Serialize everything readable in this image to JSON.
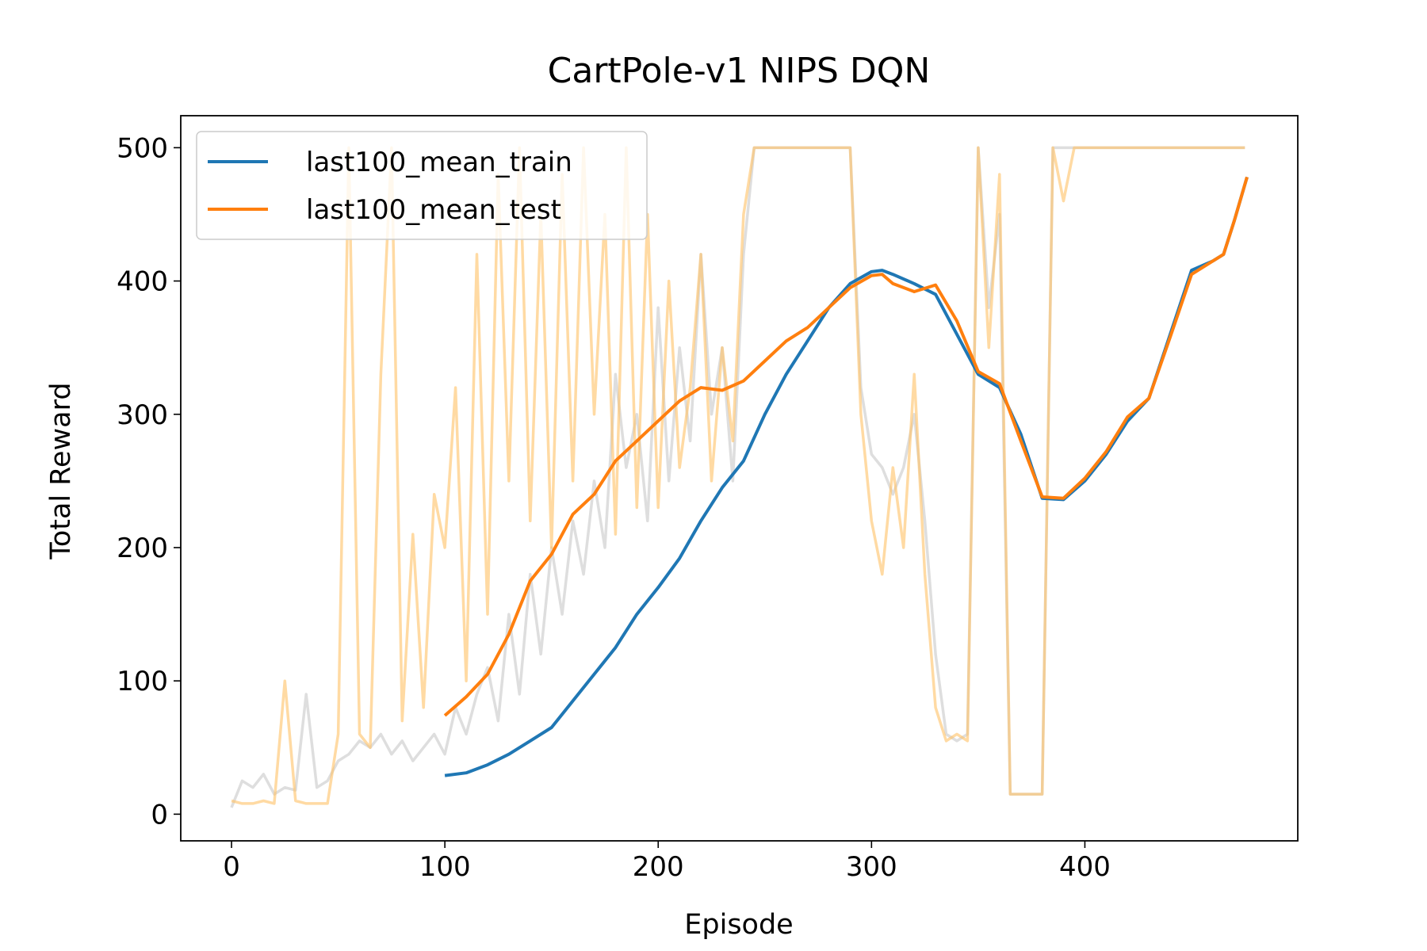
{
  "chart_data": {
    "type": "line",
    "title": "CartPole-v1 NIPS DQN",
    "x_label": "Episode",
    "y_label": "Total Reward",
    "xlim": [
      -23.8,
      499.8
    ],
    "ylim": [
      -20,
      524
    ],
    "xticks": [
      0,
      100,
      200,
      300,
      400
    ],
    "yticks": [
      0,
      100,
      200,
      300,
      400,
      500
    ],
    "grid": false,
    "legend": "upper left",
    "series": [
      {
        "color": "#c8c8c8",
        "x": [
          0,
          5,
          10,
          15,
          20,
          25,
          30,
          35,
          40,
          45,
          50,
          55,
          60,
          65,
          70,
          75,
          80,
          85,
          90,
          95,
          100,
          105,
          110,
          115,
          120,
          125,
          130,
          135,
          140,
          145,
          150,
          155,
          160,
          165,
          170,
          175,
          180,
          185,
          190,
          195,
          200,
          205,
          210,
          215,
          220,
          225,
          230,
          235,
          240,
          245,
          250,
          255,
          260,
          265,
          270,
          275,
          280,
          285,
          290,
          295,
          300,
          305,
          310,
          315,
          320,
          325,
          330,
          335,
          340,
          345,
          350,
          355,
          360,
          365,
          370,
          375,
          380,
          385,
          390,
          395,
          400,
          405,
          410,
          415,
          420,
          425,
          430,
          435,
          440,
          445,
          450,
          455,
          460,
          465,
          470,
          475
        ],
        "values": [
          5,
          25,
          20,
          30,
          15,
          20,
          18,
          90,
          20,
          25,
          40,
          45,
          55,
          50,
          60,
          45,
          55,
          40,
          50,
          60,
          45,
          80,
          60,
          90,
          110,
          70,
          150,
          90,
          180,
          120,
          200,
          150,
          220,
          180,
          250,
          200,
          330,
          260,
          300,
          220,
          380,
          250,
          350,
          280,
          420,
          300,
          350,
          250,
          420,
          500,
          500,
          500,
          500,
          500,
          500,
          500,
          500,
          500,
          500,
          320,
          270,
          260,
          240,
          260,
          300,
          220,
          120,
          60,
          55,
          60,
          500,
          380,
          450,
          15,
          15,
          15,
          15,
          500,
          500,
          500,
          500,
          500,
          500,
          500,
          500,
          500,
          500,
          500,
          500,
          500,
          500,
          500,
          500,
          500,
          500,
          500
        ]
      },
      {
        "color": "#ffc266",
        "x": [
          0,
          5,
          10,
          15,
          20,
          25,
          30,
          35,
          40,
          45,
          50,
          55,
          60,
          65,
          70,
          75,
          80,
          85,
          90,
          95,
          100,
          105,
          110,
          115,
          120,
          125,
          130,
          135,
          140,
          145,
          150,
          155,
          160,
          165,
          170,
          175,
          180,
          185,
          190,
          195,
          200,
          205,
          210,
          215,
          220,
          225,
          230,
          235,
          240,
          245,
          250,
          255,
          260,
          265,
          270,
          275,
          280,
          285,
          290,
          295,
          300,
          305,
          310,
          315,
          320,
          325,
          330,
          335,
          340,
          345,
          350,
          355,
          360,
          365,
          370,
          375,
          380,
          385,
          390,
          395,
          400,
          405,
          410,
          415,
          420,
          425,
          430,
          435,
          440,
          445,
          450,
          455,
          460,
          465,
          470,
          475
        ],
        "values": [
          10,
          8,
          8,
          10,
          8,
          100,
          10,
          8,
          8,
          8,
          60,
          500,
          60,
          50,
          330,
          500,
          70,
          210,
          80,
          240,
          200,
          320,
          100,
          420,
          150,
          480,
          250,
          500,
          220,
          450,
          200,
          480,
          250,
          500,
          300,
          450,
          210,
          500,
          230,
          450,
          230,
          400,
          260,
          320,
          420,
          250,
          350,
          280,
          450,
          500,
          500,
          500,
          500,
          500,
          500,
          500,
          500,
          500,
          500,
          300,
          220,
          180,
          260,
          200,
          330,
          180,
          80,
          55,
          60,
          55,
          500,
          350,
          480,
          15,
          15,
          15,
          15,
          500,
          460,
          500,
          500,
          500,
          500,
          500,
          500,
          500,
          500,
          500,
          500,
          500,
          500,
          500,
          500,
          500,
          500,
          500
        ]
      },
      {
        "name": "last100_mean_train",
        "color": "#1f77b4",
        "x": [
          100,
          110,
          120,
          130,
          140,
          150,
          160,
          170,
          180,
          190,
          200,
          210,
          220,
          230,
          240,
          250,
          260,
          270,
          280,
          290,
          300,
          305,
          310,
          320,
          330,
          340,
          350,
          360,
          370,
          380,
          390,
          400,
          410,
          420,
          430,
          440,
          450,
          460,
          465,
          470,
          476
        ],
        "values": [
          29,
          31,
          37,
          45,
          55,
          65,
          85,
          105,
          125,
          150,
          170,
          192,
          220,
          245,
          265,
          300,
          330,
          355,
          380,
          398,
          407,
          408,
          405,
          398,
          390,
          360,
          330,
          320,
          285,
          237,
          236,
          250,
          270,
          295,
          312,
          360,
          408,
          415,
          420,
          445,
          478
        ]
      },
      {
        "name": "last100_mean_test",
        "color": "#ff7f0e",
        "x": [
          100,
          110,
          120,
          130,
          140,
          150,
          160,
          170,
          180,
          190,
          200,
          210,
          220,
          230,
          240,
          250,
          260,
          270,
          280,
          290,
          300,
          305,
          310,
          320,
          330,
          340,
          350,
          360,
          370,
          380,
          390,
          400,
          410,
          420,
          430,
          440,
          450,
          460,
          465,
          470,
          476
        ],
        "values": [
          74,
          88,
          105,
          135,
          175,
          195,
          225,
          240,
          265,
          280,
          295,
          310,
          320,
          318,
          325,
          340,
          355,
          365,
          380,
          395,
          404,
          405,
          398,
          392,
          397,
          370,
          332,
          323,
          280,
          238,
          237,
          252,
          272,
          298,
          312,
          358,
          405,
          415,
          420,
          445,
          478
        ]
      }
    ]
  }
}
